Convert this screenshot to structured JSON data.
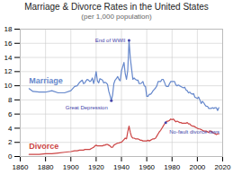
{
  "chart_data": {
    "type": "line",
    "title": "Marriage & Divorce Rates in the United States",
    "subtitle": "(per 1,000 population)",
    "x": [
      1867,
      1870,
      1875,
      1880,
      1885,
      1890,
      1895,
      1900,
      1903,
      1905,
      1907,
      1909,
      1910,
      1911,
      1912,
      1913,
      1914,
      1915,
      1916,
      1917,
      1918,
      1919,
      1920,
      1921,
      1922,
      1923,
      1924,
      1925,
      1926,
      1927,
      1928,
      1929,
      1930,
      1931,
      1932,
      1933,
      1934,
      1935,
      1936,
      1937,
      1938,
      1939,
      1940,
      1941,
      1942,
      1943,
      1944,
      1945,
      1946,
      1947,
      1948,
      1949,
      1950,
      1951,
      1952,
      1953,
      1954,
      1955,
      1956,
      1957,
      1958,
      1959,
      1960,
      1961,
      1962,
      1963,
      1964,
      1965,
      1966,
      1967,
      1968,
      1969,
      1970,
      1971,
      1972,
      1973,
      1974,
      1975,
      1976,
      1977,
      1978,
      1979,
      1980,
      1981,
      1982,
      1983,
      1984,
      1985,
      1986,
      1987,
      1988,
      1989,
      1990,
      1991,
      1992,
      1993,
      1994,
      1995,
      1996,
      1997,
      1998,
      1999,
      2000,
      2001,
      2002,
      2003,
      2004,
      2005,
      2006,
      2007,
      2008,
      2009,
      2010,
      2011,
      2012,
      2013,
      2014,
      2015,
      2016,
      2017
    ],
    "series": [
      {
        "name": "Marriage",
        "color": "#6688cc",
        "values": [
          9.6,
          9.2,
          9.1,
          9.1,
          9.3,
          9.0,
          9.0,
          9.3,
          9.9,
          10.0,
          10.5,
          10.8,
          10.3,
          10.4,
          10.7,
          10.9,
          10.8,
          10.6,
          10.7,
          11.1,
          10.3,
          11.0,
          12.0,
          10.7,
          10.4,
          11.0,
          10.9,
          10.8,
          10.4,
          10.5,
          10.4,
          10.2,
          9.2,
          8.6,
          7.9,
          8.7,
          10.3,
          10.8,
          11.0,
          11.3,
          10.9,
          10.7,
          12.1,
          12.7,
          13.3,
          11.7,
          10.9,
          12.2,
          16.4,
          13.9,
          12.4,
          10.9,
          11.1,
          10.9,
          10.8,
          10.8,
          10.3,
          10.3,
          10.4,
          10.6,
          10.0,
          9.9,
          8.5,
          8.5,
          8.8,
          8.8,
          9.0,
          9.3,
          9.5,
          9.7,
          10.0,
          10.6,
          10.6,
          10.6,
          10.9,
          10.9,
          10.5,
          10.0,
          9.9,
          9.9,
          10.3,
          10.6,
          10.6,
          10.6,
          10.6,
          10.1,
          10.0,
          10.1,
          10.0,
          9.9,
          9.8,
          9.7,
          9.8,
          9.4,
          9.3,
          9.0,
          9.1,
          8.9,
          8.8,
          8.9,
          8.4,
          8.3,
          8.2,
          8.4,
          8.0,
          7.5,
          7.8,
          7.6,
          7.3,
          7.1,
          7.1,
          6.8,
          6.8,
          6.8,
          6.9,
          6.8,
          6.9,
          6.9,
          6.5,
          6.9
        ]
      },
      {
        "name": "Divorce",
        "color": "#cc4444",
        "values": [
          0.3,
          0.3,
          0.3,
          0.4,
          0.4,
          0.5,
          0.6,
          0.7,
          0.8,
          0.8,
          0.9,
          0.9,
          0.9,
          1.0,
          1.0,
          1.0,
          1.0,
          1.0,
          1.1,
          1.2,
          1.3,
          1.5,
          1.6,
          1.5,
          1.5,
          1.5,
          1.5,
          1.5,
          1.6,
          1.6,
          1.7,
          1.7,
          1.6,
          1.5,
          1.3,
          1.3,
          1.6,
          1.7,
          1.8,
          1.9,
          1.9,
          2.0,
          2.0,
          2.2,
          2.4,
          2.6,
          2.5,
          3.5,
          4.3,
          3.4,
          2.8,
          2.6,
          2.6,
          2.5,
          2.5,
          2.5,
          2.4,
          2.3,
          2.3,
          2.2,
          2.2,
          2.2,
          2.2,
          2.3,
          2.2,
          2.3,
          2.4,
          2.5,
          2.5,
          2.6,
          2.9,
          3.2,
          3.5,
          3.7,
          4.0,
          4.3,
          4.6,
          4.8,
          5.0,
          5.0,
          5.1,
          5.3,
          5.2,
          5.3,
          5.1,
          4.9,
          5.0,
          4.9,
          4.8,
          4.8,
          4.7,
          4.7,
          4.7,
          4.7,
          4.8,
          4.6,
          4.6,
          4.4,
          4.3,
          4.3,
          4.2,
          4.1,
          4.0,
          3.9,
          3.9,
          3.8,
          3.7,
          3.6,
          3.6,
          3.6,
          3.5,
          3.4,
          3.6,
          3.6,
          3.4,
          3.3,
          3.2,
          3.1,
          3.2,
          3.2
        ]
      }
    ],
    "xlim": [
      1860,
      2020
    ],
    "xticks": [
      1860,
      1880,
      1900,
      1920,
      1940,
      1960,
      1980,
      2000,
      2020
    ],
    "ylim": [
      0,
      18
    ],
    "yticks": [
      0,
      2,
      4,
      6,
      8,
      10,
      12,
      14,
      16,
      18
    ],
    "grid": true,
    "annotations": [
      {
        "text": "End of WWII",
        "x": 1946,
        "y": 16.4,
        "color": "#4444aa"
      },
      {
        "text": "Great Depression",
        "x": 1932,
        "y": 7.9,
        "color": "#4444aa"
      },
      {
        "text": "No-fault divorce laws",
        "x": 1975,
        "y": 4.8,
        "color": "#4444aa"
      }
    ]
  }
}
